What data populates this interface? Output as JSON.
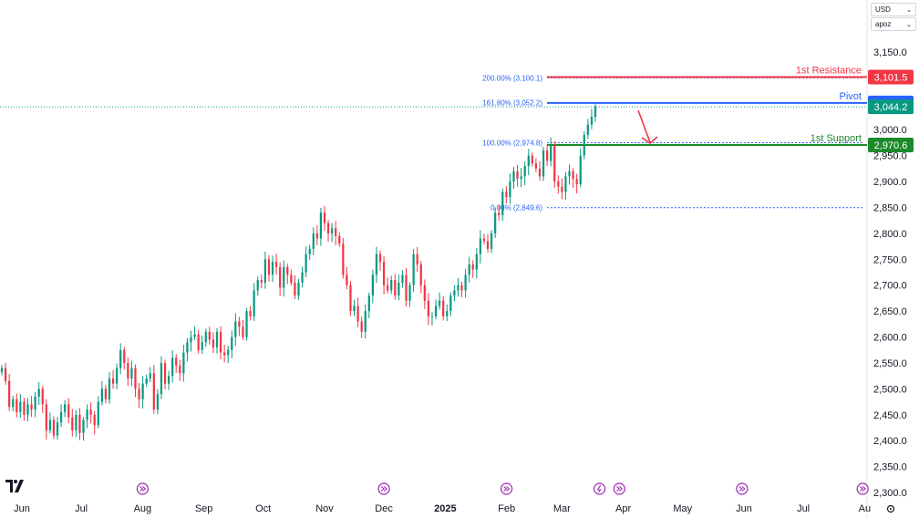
{
  "toolbar": {
    "currency": "USD",
    "scale": "apoz"
  },
  "colors": {
    "up": "#089981",
    "down": "#f23645",
    "fib": "#2962ff",
    "resistance": "#f23645",
    "pivot": "#2962ff",
    "support": "#1b8a2a",
    "current": "#089981",
    "arrow": "#f23645"
  },
  "chart_data": {
    "type": "candlestick",
    "title": "",
    "xlabel": "",
    "ylabel": "",
    "ylim": [
      2290,
      3185
    ],
    "y_ticks": [
      "2,300.0",
      "2,350.0",
      "2,400.0",
      "2,450.0",
      "2,500.0",
      "2,550.0",
      "2,600.0",
      "2,650.0",
      "2,700.0",
      "2,750.0",
      "2,800.0",
      "2,850.0",
      "2,900.0",
      "2,950.0",
      "3,000.0",
      "3,050.0",
      "3,100.0",
      "3,150.0"
    ],
    "y_tick_values": [
      2300,
      2350,
      2400,
      2450,
      2500,
      2550,
      2600,
      2650,
      2700,
      2750,
      2800,
      2850,
      2900,
      2950,
      3000,
      3050,
      3100,
      3150
    ],
    "x_ticks": [
      {
        "label": "Jun",
        "day": 0
      },
      {
        "label": "Jul",
        "day": 30
      },
      {
        "label": "Aug",
        "day": 61
      },
      {
        "label": "Sep",
        "day": 92
      },
      {
        "label": "Oct",
        "day": 122
      },
      {
        "label": "Nov",
        "day": 153
      },
      {
        "label": "Dec",
        "day": 183
      },
      {
        "label": "2025",
        "day": 214,
        "bold": true
      },
      {
        "label": "Feb",
        "day": 245
      },
      {
        "label": "Mar",
        "day": 273
      },
      {
        "label": "Apr",
        "day": 304
      },
      {
        "label": "May",
        "day": 334
      },
      {
        "label": "Jun",
        "day": 365
      },
      {
        "label": "Jul",
        "day": 395
      },
      {
        "label": "Au",
        "day": 426
      }
    ],
    "event_markers": [
      {
        "day": 61,
        "icon": "forward"
      },
      {
        "day": 183,
        "icon": "forward"
      },
      {
        "day": 245,
        "icon": "forward"
      },
      {
        "day": 292,
        "icon": "flash"
      },
      {
        "day": 302,
        "icon": "forward"
      },
      {
        "day": 364,
        "icon": "forward"
      },
      {
        "day": 425,
        "icon": "forward"
      }
    ],
    "series": [
      {
        "closes": [
          2540,
          2515,
          2465,
          2480,
          2455,
          2475,
          2450,
          2470,
          2460,
          2485,
          2500,
          2470,
          2420,
          2440,
          2410,
          2435,
          2455,
          2470,
          2445,
          2420,
          2450,
          2415,
          2440,
          2460,
          2450,
          2430,
          2475,
          2500,
          2480,
          2520,
          2510,
          2540,
          2575,
          2550,
          2520,
          2540,
          2500,
          2480,
          2510,
          2520,
          2530,
          2460,
          2490,
          2550,
          2510,
          2525,
          2560,
          2545,
          2530,
          2570,
          2590,
          2600,
          2605,
          2575,
          2590,
          2610,
          2595,
          2580,
          2610,
          2570,
          2565,
          2575,
          2600,
          2630,
          2620,
          2600,
          2650,
          2640,
          2690,
          2710,
          2705,
          2750,
          2720,
          2745,
          2735,
          2695,
          2735,
          2720,
          2705,
          2680,
          2705,
          2725,
          2760,
          2770,
          2800,
          2790,
          2840,
          2820,
          2800,
          2810,
          2795,
          2780,
          2720,
          2700,
          2650,
          2660,
          2630,
          2610,
          2650,
          2680,
          2720,
          2760,
          2745,
          2700,
          2690,
          2710,
          2680,
          2705,
          2720,
          2670,
          2700,
          2760,
          2740,
          2700,
          2670,
          2640,
          2640,
          2660,
          2670,
          2640,
          2650,
          2680,
          2690,
          2700,
          2690,
          2720,
          2740,
          2730,
          2760,
          2790,
          2785,
          2770,
          2800,
          2840,
          2835,
          2880,
          2870,
          2900,
          2920,
          2905,
          2910,
          2930,
          2950,
          2935,
          2925,
          2910,
          2960,
          2940,
          2970,
          2900,
          2890,
          2880,
          2910,
          2920,
          2905,
          2895,
          2950,
          2990,
          3010,
          3025,
          3044
        ]
      }
    ],
    "fib_levels": [
      {
        "label": "200.00% (3,100.1)",
        "value": 3100.1
      },
      {
        "label": "161.80% (3,052.2)",
        "value": 3052.2
      },
      {
        "label": "100.00% (2,974.8)",
        "value": 2974.8
      },
      {
        "label": "0.00% (2,849.6)",
        "value": 2849.6
      }
    ],
    "levels": [
      {
        "name": "1st Resistance",
        "value": 3101.5,
        "badge": "3,101.5",
        "color": "#f23645"
      },
      {
        "name": "Pivot",
        "value": 3051.7,
        "badge": "3,051.7",
        "color": "#2962ff"
      },
      {
        "name": "1st Support",
        "value": 2970.6,
        "badge": "2,970.6",
        "color": "#1b8a2a"
      }
    ],
    "current_price": {
      "value": 3044.2,
      "badge": "3,044.2"
    },
    "grid": false,
    "legend": "none"
  }
}
